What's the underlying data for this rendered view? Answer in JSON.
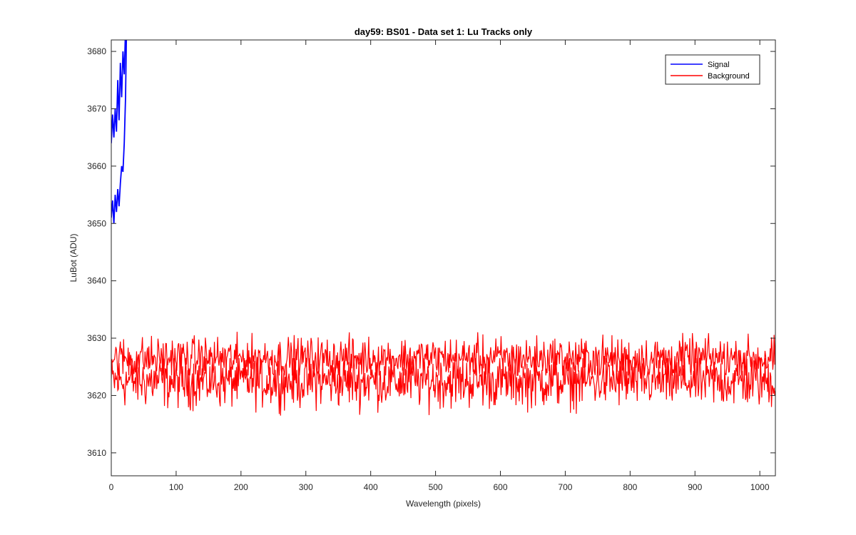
{
  "chart_data": {
    "type": "line",
    "title": "day59: BS01 - Data set 1: Lu Tracks only",
    "xlabel": "Wavelength (pixels)",
    "ylabel": "LuBot (ADU)",
    "xlim": [
      0,
      1024
    ],
    "ylim": [
      3606,
      3682
    ],
    "xticks": [
      0,
      100,
      200,
      300,
      400,
      500,
      600,
      700,
      800,
      900,
      1000
    ],
    "yticks": [
      3610,
      3620,
      3630,
      3640,
      3650,
      3660,
      3670,
      3680
    ],
    "grid": false,
    "legend_position": "top-right",
    "series": [
      {
        "name": "Signal",
        "color": "#0000ff",
        "x": [
          0,
          2,
          4,
          6,
          8,
          10,
          12,
          14,
          16,
          18,
          20,
          22,
          24
        ],
        "values": [
          3664,
          3669,
          3665,
          3670,
          3666,
          3675,
          3668,
          3678,
          3672,
          3680,
          3676,
          3684,
          3690
        ]
      },
      {
        "name": "Signal",
        "color": "#0000ff",
        "x": [
          0,
          2,
          4,
          6,
          8,
          10,
          12,
          14,
          16,
          18,
          20,
          22,
          24
        ],
        "values": [
          3651,
          3654,
          3650,
          3655,
          3652,
          3656,
          3653,
          3657,
          3660,
          3659,
          3664,
          3672,
          3688
        ]
      },
      {
        "name": "Background",
        "color": "#ff0000",
        "x_range": [
          0,
          1024
        ],
        "band_upper": {
          "mean": 3626.5,
          "min": 3623.5,
          "max": 3631.5
        },
        "band_lower": {
          "mean": 3622.5,
          "min": 3616.5,
          "max": 3626.5
        }
      }
    ]
  },
  "legend": {
    "items": [
      {
        "label": "Signal",
        "color": "#0000ff"
      },
      {
        "label": "Background",
        "color": "#ff0000"
      }
    ]
  }
}
